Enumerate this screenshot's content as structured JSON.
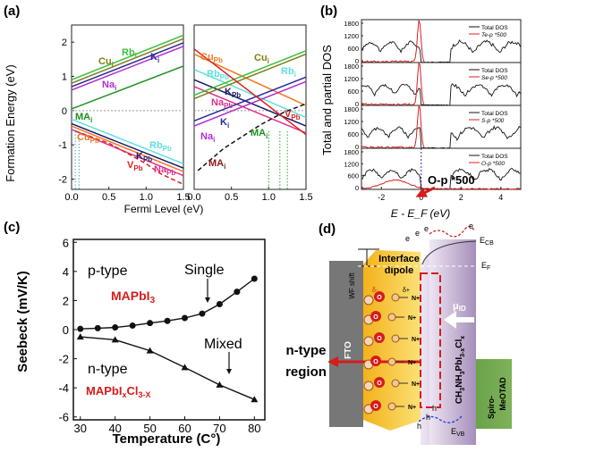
{
  "panels": {
    "a": "(a)",
    "b": "(b)",
    "c": "(c)",
    "d": "(d)"
  },
  "chart_data": [
    {
      "id": "a",
      "type": "line",
      "ylabel": "Formation Energy (eV)",
      "xlabel": "Fermi Level (eV)",
      "xlim": [
        0.0,
        1.5
      ],
      "ylim": [
        -2.3,
        2.5
      ],
      "xticks": [
        "0.0",
        "0.5",
        "1.0",
        "1.5"
      ],
      "yticks": [
        "2",
        "1",
        "0",
        "-1",
        "-2"
      ],
      "subplots": [
        {
          "series": [
            {
              "name": "Cu_i",
              "color": "#7f7f1a",
              "x": [
                0,
                1.5
              ],
              "y": [
                0.8,
                2.1
              ]
            },
            {
              "name": "Rb_i",
              "color": "#3bbf3b",
              "x": [
                0,
                1.5
              ],
              "y": [
                0.9,
                2.2
              ]
            },
            {
              "name": "K_i",
              "color": "#2b2b9a",
              "x": [
                0,
                1.5
              ],
              "y": [
                0.7,
                1.98
              ]
            },
            {
              "name": "Na_i",
              "color": "#b02cd0",
              "x": [
                0,
                1.5
              ],
              "y": [
                0.6,
                1.88
              ]
            },
            {
              "name": "MA_i",
              "color": "#1f8f1f",
              "x": [
                0,
                1.5
              ],
              "y": [
                0.05,
                1.3
              ]
            },
            {
              "name": "Rb_Pb",
              "color": "#5fe0e0",
              "x": [
                0,
                1.5
              ],
              "y": [
                -0.25,
                -1.55
              ]
            },
            {
              "name": "K_Pb",
              "color": "#1a1a6a",
              "x": [
                0,
                1.5
              ],
              "y": [
                -0.38,
                -1.68
              ]
            },
            {
              "name": "Cu_Pb",
              "color": "#f07820",
              "x": [
                0,
                1.5
              ],
              "y": [
                -0.45,
                -1.78
              ]
            },
            {
              "name": "Na_Pb",
              "color": "#e0308c",
              "x": [
                0,
                1.5
              ],
              "y": [
                -0.55,
                -1.9
              ]
            },
            {
              "name": "V_Pb",
              "color": "#e02020",
              "dashed": true,
              "x": [
                0.05,
                0.5,
                1.0,
                1.2,
                1.5
              ],
              "y": [
                -0.6,
                -0.95,
                -1.55,
                -1.85,
                -2.15
              ]
            }
          ],
          "labels": [
            {
              "text": "Cu",
              "sub": "i",
              "color": "#7f7f1a"
            },
            {
              "text": "Rb",
              "sub": "i",
              "color": "#3bbf3b"
            },
            {
              "text": "K",
              "sub": "i",
              "color": "#2b2b9a"
            },
            {
              "text": "Na",
              "sub": "i",
              "color": "#b02cd0"
            },
            {
              "text": "MA",
              "sub": "i",
              "color": "#1f8f1f"
            },
            {
              "text": "Cu",
              "sub": "Pb",
              "color": "#f07820"
            },
            {
              "text": "Rb",
              "sub": "Pb",
              "color": "#5fe0e0"
            },
            {
              "text": "K",
              "sub": "Pb",
              "color": "#1a1a6a"
            },
            {
              "text": "V",
              "sub": "Pb",
              "color": "#e02020"
            },
            {
              "text": "Na",
              "sub": "Pb",
              "color": "#e0308c"
            }
          ]
        },
        {
          "series": [
            {
              "name": "Cu_Pb",
              "color": "#f07820",
              "x": [
                0,
                1.5
              ],
              "y": [
                1.65,
                0.15
              ]
            },
            {
              "name": "Rb_Pb",
              "color": "#5fe0e0",
              "x": [
                0,
                1.5
              ],
              "y": [
                1.2,
                -0.2
              ]
            },
            {
              "name": "K_Pb",
              "color": "#1a1a6a",
              "x": [
                0,
                1.5
              ],
              "y": [
                0.9,
                -0.45
              ]
            },
            {
              "name": "Na_Pb",
              "color": "#e0308c",
              "x": [
                0,
                1.5
              ],
              "y": [
                0.7,
                -0.65
              ]
            },
            {
              "name": "Cu_i",
              "color": "#7f7f1a",
              "x": [
                0,
                1.5
              ],
              "y": [
                0.35,
                1.65
              ]
            },
            {
              "name": "Rb_i",
              "color": "#3bbf3b",
              "x": [
                0,
                1.5
              ],
              "y": [
                0.45,
                1.75
              ]
            },
            {
              "name": "K_i",
              "color": "#2b2b9a",
              "x": [
                0,
                1.5
              ],
              "y": [
                -0.3,
                0.98
              ]
            },
            {
              "name": "Na_i",
              "color": "#b02cd0",
              "x": [
                0,
                1.5
              ],
              "y": [
                -0.45,
                0.85
              ]
            },
            {
              "name": "V_Pb",
              "color": "#e02020",
              "x": [
                0,
                1.5
              ],
              "y": [
                1.8,
                -0.7
              ]
            },
            {
              "name": "MA_i",
              "color": "#111111",
              "dashed": true,
              "x": [
                0.05,
                0.4,
                0.9,
                1.2,
                1.5
              ],
              "y": [
                -1.75,
                -1.1,
                -0.4,
                -0.05,
                0.2
              ]
            }
          ],
          "labels": [
            {
              "text": "Cu",
              "sub": "Pb",
              "color": "#f07820"
            },
            {
              "text": "Cu",
              "sub": "i",
              "color": "#7f7f1a"
            },
            {
              "text": "Rb",
              "sub": "Pb",
              "color": "#5fe0e0"
            },
            {
              "text": "Rb",
              "sub": "i",
              "color": "#5fe0e0"
            },
            {
              "text": "K",
              "sub": "Pb",
              "color": "#1a1a6a"
            },
            {
              "text": "Na",
              "sub": "Pb",
              "color": "#e0308c"
            },
            {
              "text": "K",
              "sub": "i",
              "color": "#2b2b9a"
            },
            {
              "text": "Na",
              "sub": "i",
              "color": "#b02cd0"
            },
            {
              "text": "MA",
              "sub": "i",
              "color": "#1f8f1f"
            },
            {
              "text": "V",
              "sub": "Pb",
              "color": "#e02020"
            },
            {
              "text": "MA",
              "sub": "i",
              "color": "#8b1a1a"
            }
          ]
        }
      ]
    },
    {
      "id": "b",
      "type": "line",
      "ylabel": "Total and partial DOS",
      "xlabel": "E - E_F (eV)",
      "xticks": [
        "-2",
        "0",
        "2",
        "4"
      ],
      "yticks": [
        "1800",
        "1200",
        "600",
        "0"
      ],
      "subplots": [
        {
          "legend": [
            "Total DOS",
            "Te-p *500"
          ]
        },
        {
          "legend": [
            "Total DOS",
            "Se-p *500"
          ]
        },
        {
          "legend": [
            "Total DOS",
            "S-p *500"
          ]
        },
        {
          "legend": [
            "Total DOS",
            "O-p *500"
          ]
        }
      ],
      "annotation": "O-p *500",
      "colors": {
        "total": "#111111",
        "partial": "#d62020",
        "fermi": "#2030c0"
      }
    },
    {
      "id": "c",
      "type": "line",
      "xlabel": "Temperature (C°)",
      "ylabel": "Seebeck (mV/K)",
      "xlim": [
        28,
        83
      ],
      "ylim": [
        -6.2,
        6.2
      ],
      "xticks": [
        "30",
        "40",
        "50",
        "60",
        "70",
        "80"
      ],
      "yticks": [
        "6",
        "4",
        "2",
        "0",
        "-2",
        "-4",
        "-6"
      ],
      "series": [
        {
          "name": "Single",
          "x": [
            30,
            35,
            40,
            45,
            50,
            55,
            60,
            65,
            70,
            75,
            80
          ],
          "y": [
            0.05,
            0.1,
            0.15,
            0.28,
            0.45,
            0.6,
            0.8,
            1.1,
            1.75,
            2.6,
            3.5
          ]
        },
        {
          "name": "Mixed",
          "x": [
            30,
            40,
            50,
            60,
            70,
            80
          ],
          "y": [
            -0.5,
            -0.7,
            -1.45,
            -2.6,
            -3.8,
            -4.8
          ]
        }
      ],
      "annotations": {
        "p_type": "p-type",
        "single": "Single",
        "mapbi3": "MAPbI",
        "mapbi3_sub": "3",
        "mixed": "Mixed",
        "n_type": "n-type",
        "mapbicl": "MAPbI",
        "mapbicl_sub1": "x",
        "mapbicl_cl": "Cl",
        "mapbicl_sub2": "3-X"
      }
    }
  ],
  "diagram_d": {
    "wf_shift": "WF shift",
    "interface": "Interface",
    "dipole": "dipole",
    "fto": "FTO",
    "mu": "μ",
    "mu_sub": "ID",
    "material": "CH",
    "ntype": "n-type",
    "region": "region",
    "spiro": "Spiro-",
    "meotad": "MeOTAD",
    "ecb": "E",
    "ecb_sub": "CB",
    "ef": "E",
    "ef_sub": "F",
    "evb": "E",
    "evb_sub": "VB",
    "electron": "e",
    "hole": "h",
    "delta_minus": "δ-",
    "delta_plus": "δ+",
    "o_label": "O",
    "n_label": "N",
    "n_plus": "+"
  }
}
